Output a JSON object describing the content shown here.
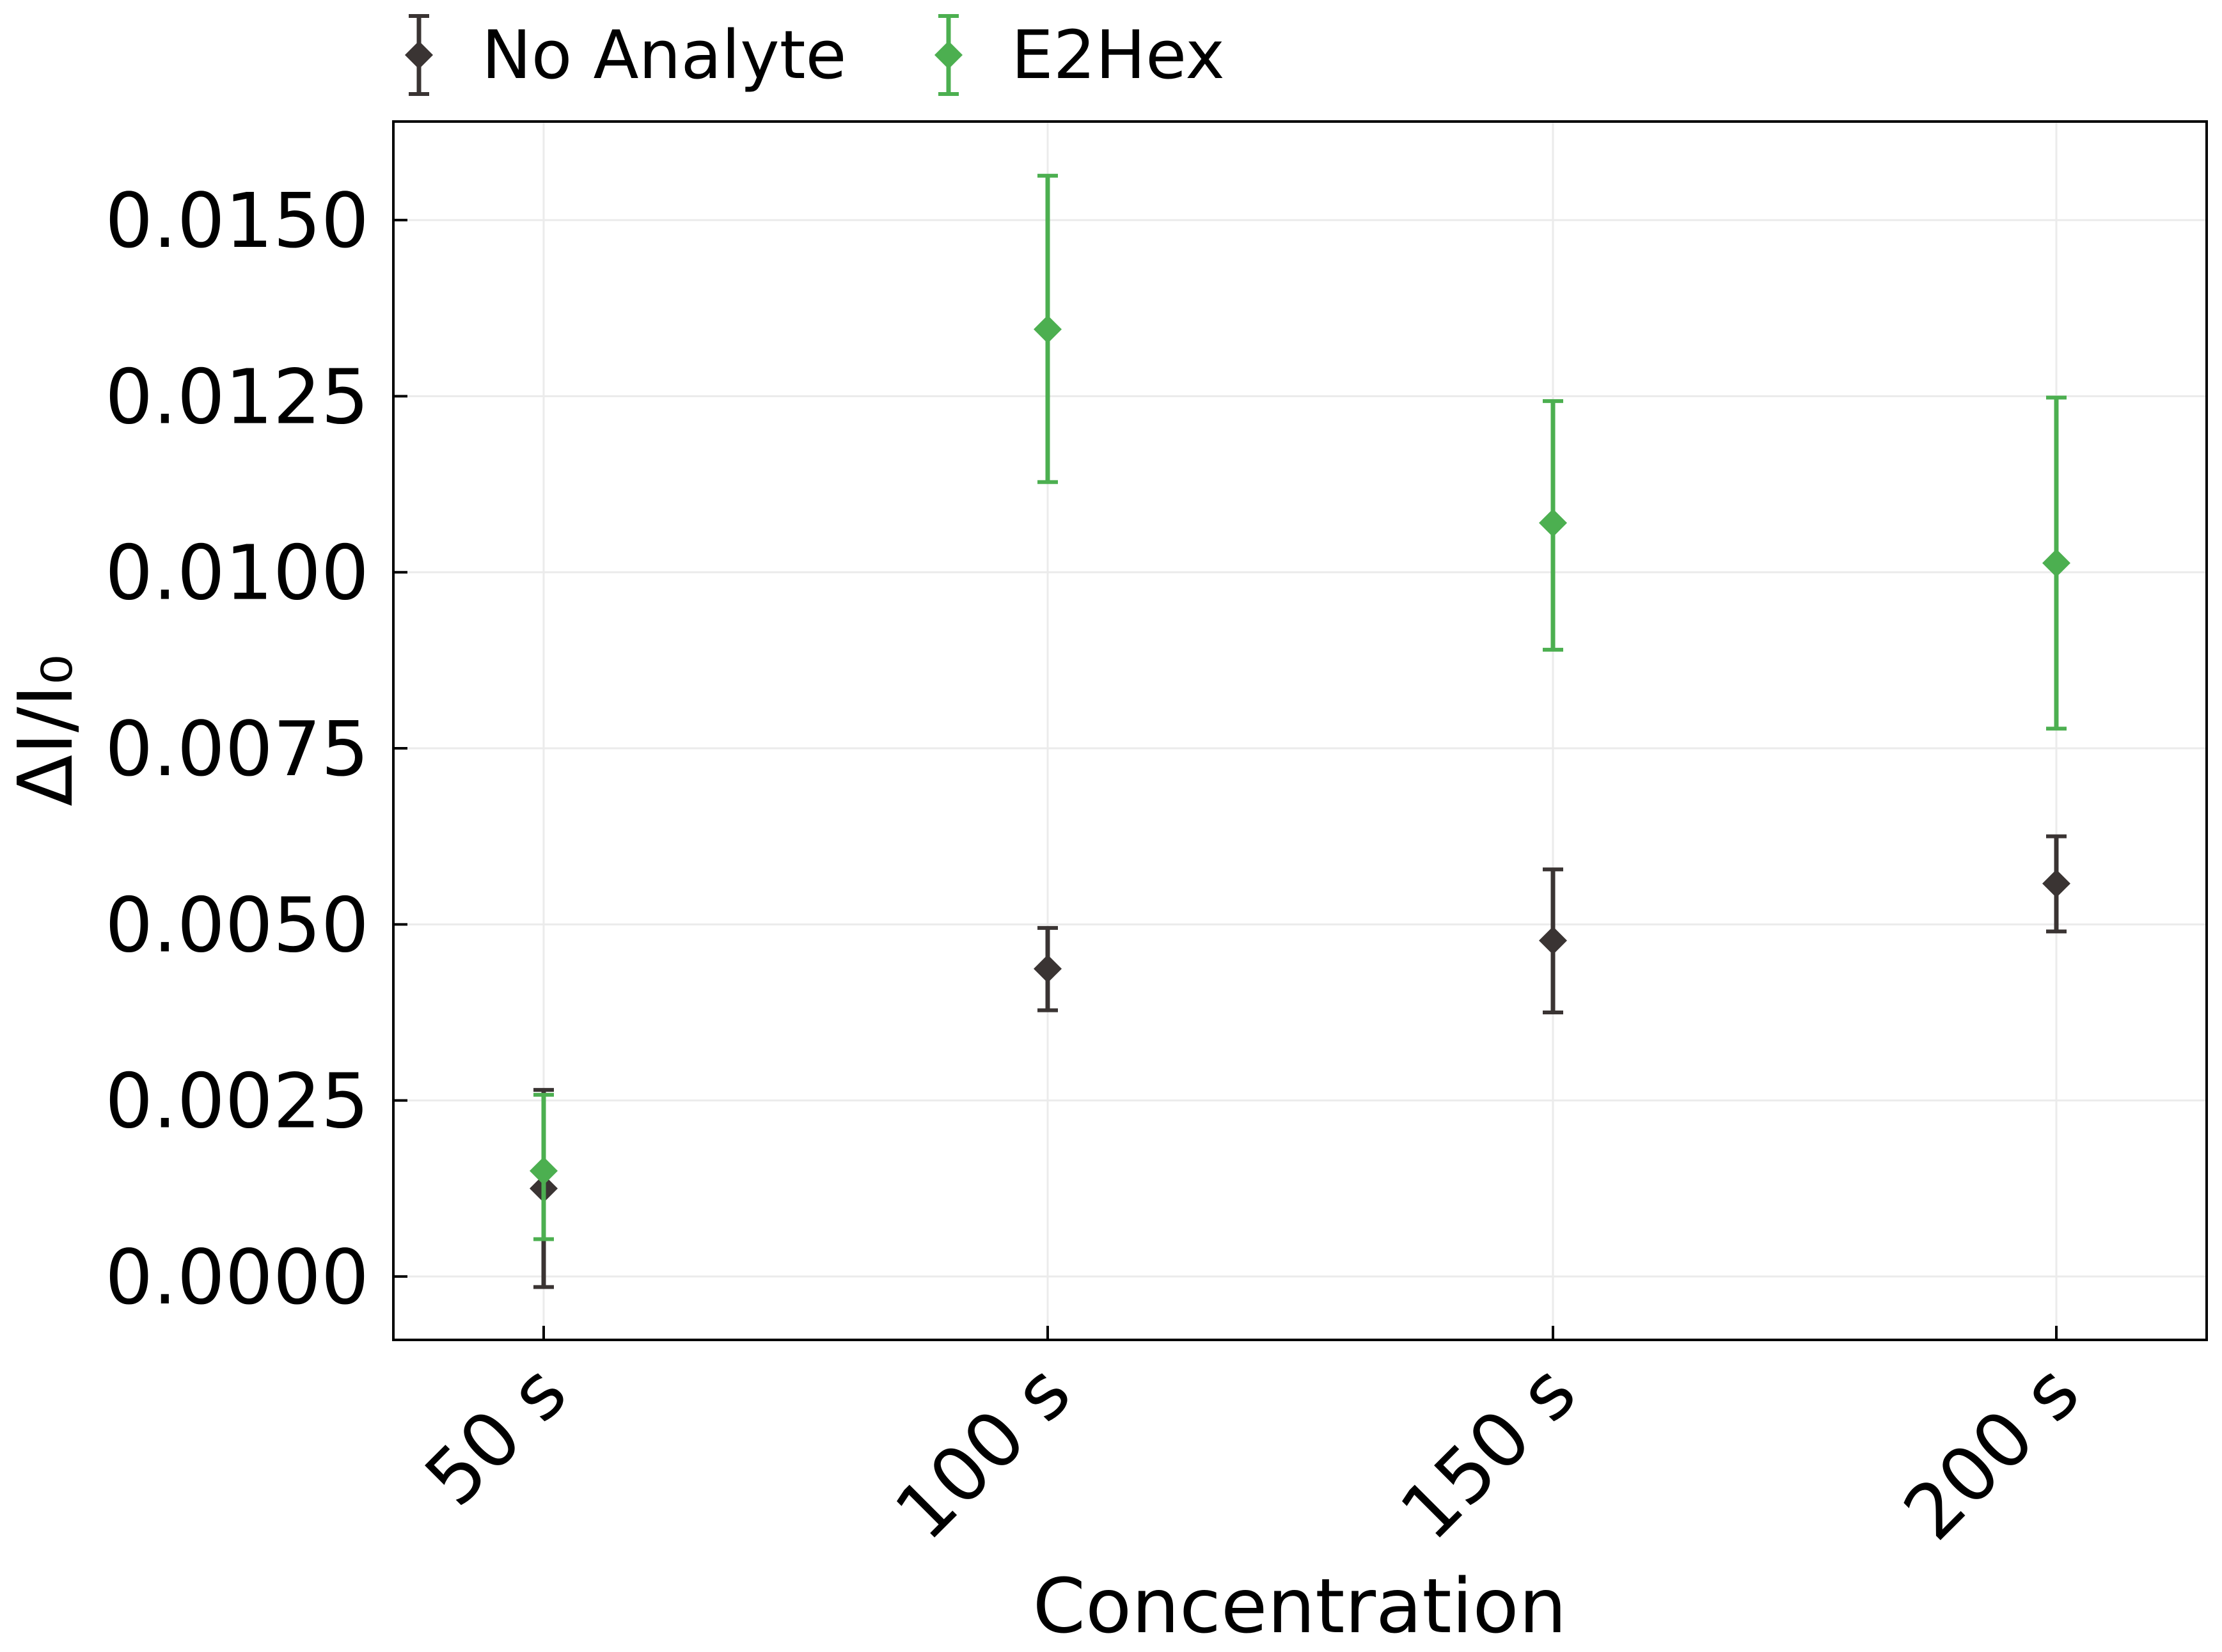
{
  "chart_data": {
    "type": "scatter",
    "title": "",
    "xlabel": "Concentration",
    "ylabel": "ΔI/I₀",
    "categories": [
      "50 s",
      "100 s",
      "150 s",
      "200 s"
    ],
    "ylim": [
      -0.0009,
      0.0164
    ],
    "yticks": [
      0.0,
      0.0025,
      0.005,
      0.0075,
      0.01,
      0.0125,
      0.015
    ],
    "ytick_labels": [
      "0.0000",
      "0.0025",
      "0.0050",
      "0.0075",
      "0.0100",
      "0.0125",
      "0.0150"
    ],
    "grid": true,
    "legend_position": "top-left",
    "series": [
      {
        "name": "No Analyte",
        "color": "#3a3433",
        "marker": "diamond",
        "values": [
          0.00125,
          0.00437,
          0.00477,
          0.00558
        ],
        "err_low": [
          -0.00015,
          0.00378,
          0.00375,
          0.0049
        ],
        "err_high": [
          0.00265,
          0.00495,
          0.00578,
          0.00625
        ]
      },
      {
        "name": "E2Hex",
        "color": "#4caf50",
        "marker": "diamond",
        "values": [
          0.0015,
          0.01345,
          0.0107,
          0.01013
        ],
        "err_low": [
          0.00053,
          0.01128,
          0.0089,
          0.00778
        ],
        "err_high": [
          0.00258,
          0.01563,
          0.01243,
          0.01248
        ]
      }
    ]
  }
}
